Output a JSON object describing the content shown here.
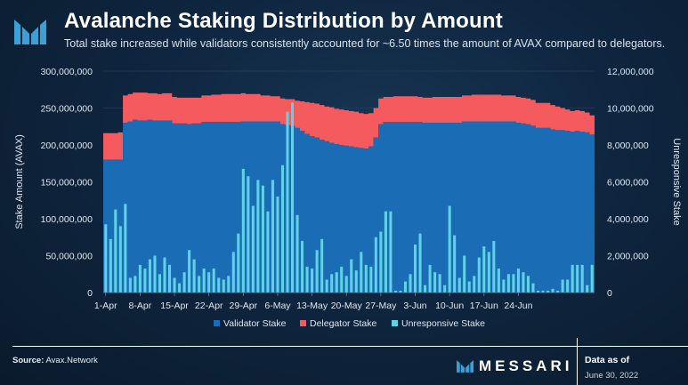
{
  "header": {
    "title": "Avalanche Staking Distribution by Amount",
    "subtitle": "Total stake increased while validators consistently accounted for ~6.50 times the amount of AVAX compared to delegators."
  },
  "footer": {
    "source_label": "Source:",
    "source_value": "Avax.Network",
    "brand": "MESSARI",
    "data_as_of_label": "Data as of",
    "data_as_of_date": "June 30, 2022"
  },
  "colors": {
    "validator": "#1a6db5",
    "delegator": "#f55a5f",
    "unresponsive": "#5fd2e6",
    "background": "#0d2036"
  },
  "chart_data": {
    "type": "area",
    "title": "Avalanche Staking Distribution by Amount",
    "ylabel": "Stake Amount (AVAX)",
    "y2label": "Unresponsive Stake",
    "ylim": [
      0,
      300000000
    ],
    "y2lim": [
      0,
      12000000
    ],
    "yticks": [
      "0",
      "50,000,000",
      "100,000,000",
      "150,000,000",
      "200,000,000",
      "250,000,000",
      "300,000,000"
    ],
    "y2ticks": [
      "0",
      "2,000,000",
      "4,000,000",
      "6,000,000",
      "8,000,000",
      "10,000,000",
      "12,000,000"
    ],
    "x_start": "2022-04-01",
    "xtick_labels": [
      "1-Apr",
      "8-Apr",
      "15-Apr",
      "22-Apr",
      "29-Apr",
      "6-May",
      "13-May",
      "20-May",
      "27-May",
      "3-Jun",
      "10-Jun",
      "17-Jun",
      "24-Jun"
    ],
    "legend": [
      "Validator Stake",
      "Delegator Stake",
      "Unresponsive Stake"
    ],
    "legend_position": "bottom",
    "series": [
      {
        "name": "Validator Stake",
        "axis": "left",
        "values": [
          180000000,
          180000000,
          180000000,
          180000000,
          230000000,
          232000000,
          234000000,
          233000000,
          233000000,
          234000000,
          233000000,
          233000000,
          233000000,
          233000000,
          229000000,
          229000000,
          229000000,
          228000000,
          229000000,
          229000000,
          231000000,
          231000000,
          231000000,
          231000000,
          231000000,
          231000000,
          231000000,
          231000000,
          232000000,
          232000000,
          232000000,
          232000000,
          232000000,
          232000000,
          232000000,
          232000000,
          228000000,
          227000000,
          226000000,
          223000000,
          219000000,
          215000000,
          212000000,
          210000000,
          207000000,
          205000000,
          203000000,
          201000000,
          200000000,
          199000000,
          198000000,
          197000000,
          196000000,
          195000000,
          198000000,
          210000000,
          228000000,
          231000000,
          231000000,
          231000000,
          231000000,
          231000000,
          231000000,
          231000000,
          231000000,
          230000000,
          230000000,
          230000000,
          230000000,
          230000000,
          230000000,
          230000000,
          230000000,
          232000000,
          232000000,
          232000000,
          232000000,
          232000000,
          232000000,
          232000000,
          232000000,
          232000000,
          232000000,
          232000000,
          230000000,
          229000000,
          228000000,
          226000000,
          223000000,
          223000000,
          223000000,
          221000000,
          220000000,
          220000000,
          219000000,
          218000000,
          219000000,
          218000000,
          217000000,
          214000000
        ],
        "note_removed": true
      },
      {
        "name": "Delegator Stake",
        "axis": "left",
        "values": [
          36000000,
          36000000,
          36000000,
          37000000,
          37000000,
          37000000,
          37000000,
          38000000,
          38000000,
          36000000,
          37000000,
          36000000,
          37000000,
          37000000,
          36000000,
          35000000,
          35000000,
          36000000,
          35000000,
          35000000,
          36000000,
          36000000,
          37000000,
          37000000,
          38000000,
          38000000,
          38000000,
          38000000,
          38000000,
          37000000,
          37000000,
          37000000,
          35000000,
          35000000,
          34000000,
          34000000,
          35000000,
          35000000,
          36000000,
          37000000,
          40000000,
          43000000,
          45000000,
          46000000,
          47000000,
          47000000,
          48000000,
          48000000,
          48000000,
          48000000,
          48000000,
          48000000,
          47000000,
          47000000,
          45000000,
          40000000,
          35000000,
          34000000,
          34000000,
          35000000,
          35000000,
          35000000,
          35000000,
          35000000,
          34000000,
          34000000,
          34000000,
          35000000,
          35000000,
          35000000,
          35000000,
          35000000,
          35000000,
          35000000,
          35000000,
          36000000,
          36000000,
          36000000,
          36000000,
          36000000,
          36000000,
          35000000,
          35000000,
          35000000,
          35000000,
          35000000,
          35000000,
          35000000,
          34000000,
          34000000,
          34000000,
          33000000,
          32000000,
          30000000,
          29000000,
          28000000,
          28000000,
          28000000,
          27000000,
          26000000
        ]
      },
      {
        "name": "Unresponsive Stake",
        "axis": "right",
        "values": [
          3700000,
          2900000,
          4500000,
          3600000,
          4800000,
          800000,
          900000,
          1500000,
          1300000,
          1800000,
          2000000,
          1000000,
          1900000,
          1500000,
          800000,
          500000,
          1100000,
          2300000,
          1800000,
          900000,
          1300000,
          1100000,
          1300000,
          800000,
          700000,
          900000,
          2200000,
          3200000,
          6700000,
          6300000,
          4700000,
          6100000,
          5800000,
          4400000,
          6100000,
          5200000,
          6900000,
          9800000,
          10300000,
          4200000,
          2800000,
          1400000,
          1300000,
          2300000,
          2900000,
          700000,
          1000000,
          1100000,
          1400000,
          900000,
          1800000,
          1200000,
          2200000,
          1500000,
          1400000,
          3000000,
          3300000,
          4400000,
          4400000,
          100000,
          100000,
          600000,
          1000000,
          2600000,
          3200000,
          400000,
          1500000,
          1100000,
          1000000,
          400000,
          4700000,
          3100000,
          800000,
          2000000,
          600000,
          900000,
          1900000,
          2500000,
          2200000,
          2800000,
          1300000,
          700000,
          1000000,
          1000000,
          1300000,
          1100000,
          900000,
          500000,
          100000,
          100000,
          100000,
          200000,
          100000,
          700000,
          700000,
          1500000,
          1500000,
          1500000,
          400000,
          1500000
        ]
      }
    ]
  }
}
